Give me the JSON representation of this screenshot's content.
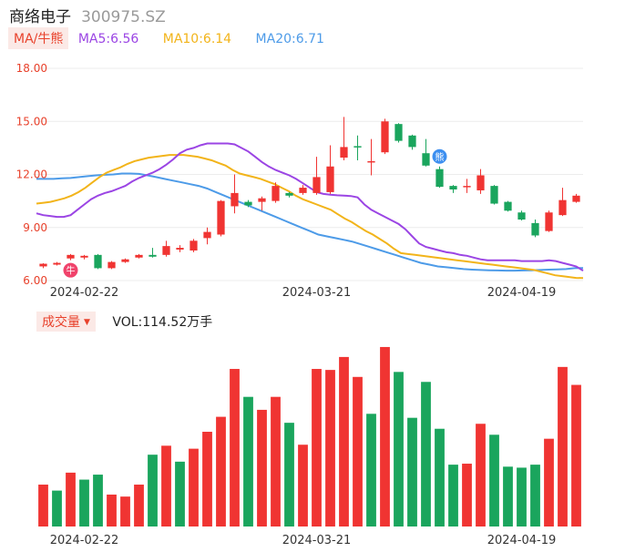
{
  "header": {
    "name": "商络电子",
    "code": "300975.SZ"
  },
  "indicators": {
    "tag_label": "MA/牛熊",
    "ma5": {
      "label": "MA5:6.56",
      "color": "#9b45e4"
    },
    "ma10": {
      "label": "MA10:6.14",
      "color": "#f2b41a"
    },
    "ma20": {
      "label": "MA20:6.71",
      "color": "#4d9be8"
    }
  },
  "volume_header": {
    "tag_label": "成交量",
    "text": "VOL:114.52万手"
  },
  "colors": {
    "up": "#f03432",
    "down": "#1aa55d",
    "axis_label": "#e8412b",
    "grid": "#ececec"
  },
  "markers": [
    {
      "icon": "bull-badge-icon",
      "glyph": "牛",
      "index": 2,
      "position": "below",
      "color": "#f0436b"
    },
    {
      "icon": "bear-badge-icon",
      "glyph": "熊",
      "index": 29,
      "position": "above",
      "color": "#3d8ff0"
    }
  ],
  "chart_data": [
    {
      "type": "candlestick",
      "title": "",
      "ylim": [
        6.0,
        18.0
      ],
      "yticks": [
        "18.00",
        "15.00",
        "12.00",
        "9.00",
        "6.00"
      ],
      "xtick_labels": [
        {
          "index": 3,
          "label": "2024-02-22"
        },
        {
          "index": 20,
          "label": "2024-03-21"
        },
        {
          "index": 35,
          "label": "2024-04-19"
        }
      ],
      "ohlc": [
        [
          6.8,
          6.95,
          6.7,
          6.98
        ],
        [
          6.9,
          7.0,
          6.85,
          7.05
        ],
        [
          7.25,
          7.45,
          7.15,
          7.5
        ],
        [
          7.3,
          7.4,
          7.2,
          7.45
        ],
        [
          7.45,
          6.7,
          6.65,
          7.5
        ],
        [
          6.7,
          7.05,
          6.65,
          7.1
        ],
        [
          7.05,
          7.2,
          7.0,
          7.25
        ],
        [
          7.3,
          7.45,
          7.25,
          7.5
        ],
        [
          7.45,
          7.35,
          7.3,
          7.85
        ],
        [
          7.45,
          7.95,
          7.35,
          8.25
        ],
        [
          7.75,
          7.85,
          7.6,
          8.0
        ],
        [
          7.7,
          8.25,
          7.6,
          8.35
        ],
        [
          8.4,
          8.75,
          8.05,
          9.0
        ],
        [
          8.6,
          10.5,
          8.5,
          10.55
        ],
        [
          10.2,
          10.95,
          9.8,
          12.0
        ],
        [
          10.45,
          10.25,
          10.15,
          10.55
        ],
        [
          10.45,
          10.65,
          9.95,
          10.75
        ],
        [
          10.5,
          11.35,
          10.4,
          11.55
        ],
        [
          10.95,
          10.8,
          10.7,
          11.0
        ],
        [
          10.95,
          11.25,
          10.85,
          11.4
        ],
        [
          10.95,
          11.85,
          10.85,
          13.0
        ],
        [
          11.0,
          12.45,
          10.9,
          13.65
        ],
        [
          12.95,
          13.55,
          12.8,
          15.25
        ],
        [
          13.6,
          13.55,
          12.8,
          14.2
        ],
        [
          12.7,
          12.75,
          11.95,
          14.0
        ],
        [
          13.25,
          15.0,
          13.15,
          15.15
        ],
        [
          14.85,
          13.9,
          13.8,
          14.9
        ],
        [
          14.2,
          13.55,
          13.4,
          14.25
        ],
        [
          13.2,
          12.5,
          12.45,
          14.0
        ],
        [
          12.3,
          11.3,
          11.25,
          12.45
        ],
        [
          11.35,
          11.15,
          10.95,
          11.4
        ],
        [
          11.3,
          11.35,
          10.95,
          11.75
        ],
        [
          11.1,
          11.95,
          10.9,
          12.3
        ],
        [
          11.35,
          10.35,
          10.3,
          11.4
        ],
        [
          10.45,
          9.95,
          9.9,
          10.5
        ],
        [
          9.85,
          9.45,
          9.4,
          9.95
        ],
        [
          9.25,
          8.55,
          8.45,
          9.45
        ],
        [
          8.8,
          9.85,
          8.75,
          9.95
        ],
        [
          9.7,
          10.55,
          9.65,
          11.25
        ],
        [
          10.45,
          10.8,
          10.4,
          10.9
        ]
      ],
      "ma5": [
        9.8,
        9.7,
        9.65,
        9.6,
        9.6,
        9.7,
        10.0,
        10.3,
        10.6,
        10.8,
        10.95,
        11.05,
        11.2,
        11.35,
        11.6,
        11.8,
        11.95,
        12.1,
        12.3,
        12.55,
        12.85,
        13.2,
        13.4,
        13.5,
        13.65,
        13.75,
        13.75,
        13.75,
        13.75,
        13.7,
        13.5,
        13.3,
        13.0,
        12.7,
        12.45,
        12.25,
        12.1,
        11.95,
        11.75,
        11.5,
        11.25,
        11.0,
        10.9,
        10.85,
        10.82,
        10.8,
        10.78,
        10.7,
        10.3,
        10.0,
        9.8,
        9.6,
        9.4,
        9.2,
        8.9,
        8.5,
        8.1,
        7.9,
        7.8,
        7.7,
        7.6,
        7.55,
        7.45,
        7.4,
        7.3,
        7.2,
        7.15,
        7.15,
        7.15,
        7.15,
        7.15,
        7.1,
        7.1,
        7.1,
        7.1,
        7.15,
        7.1,
        7.0,
        6.9,
        6.8,
        6.56
      ],
      "ma10": [
        10.35,
        10.4,
        10.45,
        10.55,
        10.65,
        10.8,
        11.0,
        11.25,
        11.55,
        11.85,
        12.1,
        12.25,
        12.4,
        12.6,
        12.75,
        12.85,
        12.95,
        13.0,
        13.05,
        13.1,
        13.1,
        13.1,
        13.05,
        13.0,
        12.9,
        12.8,
        12.65,
        12.5,
        12.25,
        12.05,
        11.95,
        11.85,
        11.75,
        11.6,
        11.45,
        11.25,
        11.05,
        10.8,
        10.6,
        10.45,
        10.3,
        10.15,
        10.0,
        9.75,
        9.5,
        9.3,
        9.05,
        8.8,
        8.6,
        8.35,
        8.1,
        7.8,
        7.55,
        7.5,
        7.45,
        7.4,
        7.35,
        7.3,
        7.25,
        7.2,
        7.15,
        7.1,
        7.05,
        7.0,
        6.95,
        6.9,
        6.85,
        6.8,
        6.75,
        6.7,
        6.65,
        6.6,
        6.5,
        6.4,
        6.3,
        6.25,
        6.2,
        6.15,
        6.14
      ],
      "ma20": [
        11.75,
        11.75,
        11.75,
        11.78,
        11.8,
        11.85,
        11.9,
        11.95,
        11.98,
        12.0,
        12.05,
        12.05,
        12.03,
        11.95,
        11.85,
        11.75,
        11.65,
        11.55,
        11.45,
        11.35,
        11.2,
        11.0,
        10.8,
        10.6,
        10.4,
        10.2,
        10.0,
        9.8,
        9.6,
        9.4,
        9.2,
        9.0,
        8.8,
        8.6,
        8.5,
        8.4,
        8.3,
        8.2,
        8.05,
        7.9,
        7.75,
        7.6,
        7.45,
        7.3,
        7.15,
        7.0,
        6.9,
        6.8,
        6.75,
        6.7,
        6.65,
        6.62,
        6.6,
        6.58,
        6.57,
        6.56,
        6.56,
        6.57,
        6.58,
        6.6,
        6.62,
        6.63,
        6.65,
        6.7,
        6.71
      ],
      "x_start_index": -1
    },
    {
      "type": "bar",
      "title": "",
      "series_name": "VOL",
      "values": [
        42,
        36,
        54,
        47,
        52,
        32,
        30,
        42,
        72,
        81,
        65,
        78,
        95,
        110,
        158,
        130,
        117,
        130,
        104,
        82,
        158,
        157,
        170,
        150,
        113,
        180,
        155,
        109,
        145,
        98,
        62,
        63,
        103,
        92,
        60,
        59,
        62,
        88,
        160,
        142
      ],
      "up": [
        true,
        false,
        true,
        false,
        false,
        true,
        true,
        true,
        false,
        true,
        false,
        true,
        true,
        true,
        true,
        false,
        true,
        true,
        false,
        true,
        true,
        true,
        true,
        true,
        false,
        true,
        false,
        false,
        false,
        false,
        false,
        true,
        true,
        false,
        false,
        false,
        false,
        true,
        true,
        true
      ],
      "ylim": [
        0,
        190
      ]
    }
  ]
}
